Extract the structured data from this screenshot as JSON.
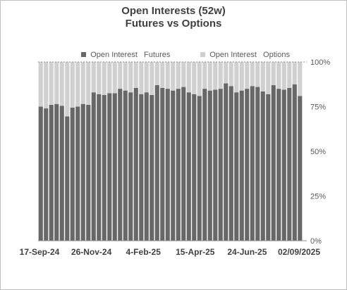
{
  "chart_data": {
    "type": "bar",
    "stacked": "percent",
    "title": "Open Interests (52w)",
    "subtitle": "Futures vs Options",
    "legend_position": "top",
    "y_axis_side": "right",
    "y_ticks": [
      "0%",
      "25%",
      "50%",
      "75%",
      "100%"
    ],
    "ylim": [
      0,
      100
    ],
    "x_tick_labels": [
      "17-Sep-24",
      "26-Nov-24",
      "4-Feb-25",
      "15-Apr-25",
      "24-Jun-25",
      "02/09/2025"
    ],
    "series": [
      {
        "name": "Open Interest   Futures",
        "color": "#676767",
        "values": [
          75,
          74,
          76,
          76.5,
          75.5,
          69.5,
          74.5,
          75,
          76.5,
          76,
          83,
          82,
          81.5,
          82.5,
          82.5,
          85,
          84,
          83,
          85.5,
          82,
          83,
          81.5,
          87,
          85.5,
          85,
          84,
          85,
          86,
          83,
          82,
          81,
          85,
          84,
          84.5,
          85,
          88,
          86.5,
          83,
          84,
          85,
          86.5,
          86,
          83.5,
          82,
          87,
          85,
          84.5,
          85.5,
          87.5,
          81
        ]
      },
      {
        "name": "Open Interest   Options",
        "color": "#d0d0d0",
        "values": [
          25,
          26,
          24,
          23.5,
          24.5,
          30.5,
          25.5,
          25,
          23.5,
          24,
          17,
          18,
          18.5,
          17.5,
          17.5,
          15,
          16,
          17,
          14.5,
          18,
          17,
          18.5,
          13,
          14.5,
          15,
          16,
          15,
          14,
          17,
          18,
          19,
          15,
          16,
          15.5,
          15,
          12,
          13.5,
          17,
          16,
          15,
          13.5,
          14,
          16.5,
          18,
          13,
          15,
          15.5,
          14.5,
          12.5,
          19
        ]
      }
    ]
  }
}
